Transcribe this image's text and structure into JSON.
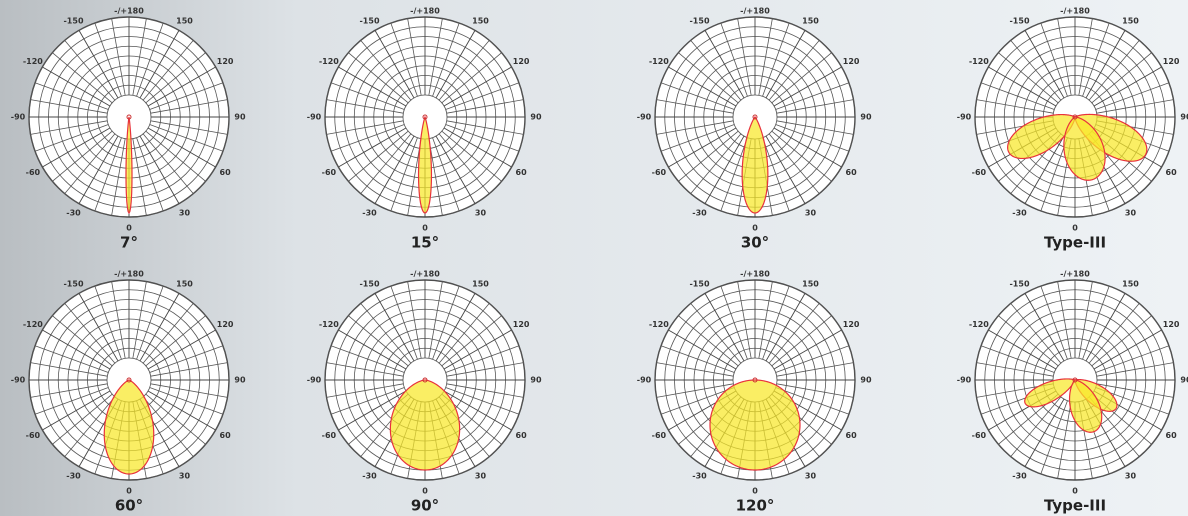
{
  "chart_data": [
    {
      "type": "polar",
      "title": "7°",
      "lobes": [
        {
          "center": 0,
          "width": 7,
          "reach": 0.96
        }
      ]
    },
    {
      "type": "polar",
      "title": "15°",
      "lobes": [
        {
          "center": 0,
          "width": 15,
          "reach": 0.96
        }
      ]
    },
    {
      "type": "polar",
      "title": "30°",
      "lobes": [
        {
          "center": 0,
          "width": 30,
          "reach": 0.96
        }
      ]
    },
    {
      "type": "polar",
      "title": "Type-III",
      "lobes": [
        {
          "center": -62,
          "width": 50,
          "reach": 0.75
        },
        {
          "center": 62,
          "width": 50,
          "reach": 0.8
        },
        {
          "center": 15,
          "width": 70,
          "reach": 0.65
        }
      ]
    },
    {
      "type": "polar",
      "title": "60°",
      "lobes": [
        {
          "center": 0,
          "width": 60,
          "reach": 0.94
        }
      ]
    },
    {
      "type": "polar",
      "title": "90°",
      "lobes": [
        {
          "center": 0,
          "width": 90,
          "reach": 0.9
        }
      ]
    },
    {
      "type": "polar",
      "title": "120°",
      "lobes": [
        {
          "center": 0,
          "width": 120,
          "reach": 0.9
        }
      ]
    },
    {
      "type": "polar",
      "title": "Type-III",
      "lobes": [
        {
          "center": -65,
          "width": 40,
          "reach": 0.55
        },
        {
          "center": 55,
          "width": 45,
          "reach": 0.5
        },
        {
          "center": 20,
          "width": 60,
          "reach": 0.55
        }
      ]
    }
  ],
  "thetaticks": [
    {
      "value": 180,
      "label": "-/+180"
    },
    -150,
    150,
    -120,
    120,
    -90,
    90,
    -60,
    60,
    -30,
    30,
    0
  ],
  "rlim": [
    0,
    1
  ]
}
